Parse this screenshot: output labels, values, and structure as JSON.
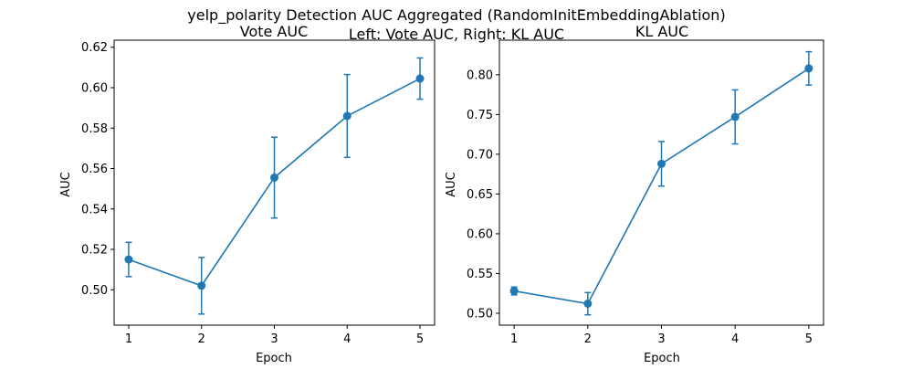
{
  "figure": {
    "suptitle_line1": "yelp_polarity Detection AUC Aggregated (RandomInitEmbeddingAblation)",
    "suptitle_line2": "Left: Vote AUC, Right: KL AUC"
  },
  "colors": {
    "series": "#1f77b4",
    "axes": "#000000",
    "background": "#ffffff"
  },
  "chart_data": [
    {
      "type": "line",
      "title": "Vote AUC",
      "xlabel": "Epoch",
      "ylabel": "AUC",
      "grid": false,
      "x": [
        1,
        2,
        3,
        4,
        5
      ],
      "xticks": [
        "1",
        "2",
        "3",
        "4",
        "5"
      ],
      "xlim": [
        0.8,
        5.2
      ],
      "yticks": [
        "0.50",
        "0.52",
        "0.54",
        "0.56",
        "0.58",
        "0.60",
        "0.62"
      ],
      "ylim": [
        0.4825,
        0.6235
      ],
      "series": [
        {
          "values": [
            0.515,
            0.502,
            0.5555,
            0.586,
            0.6045
          ],
          "error": [
            0.0085,
            0.014,
            0.02,
            0.0205,
            0.0102
          ]
        }
      ]
    },
    {
      "type": "line",
      "title": "KL AUC",
      "xlabel": "Epoch",
      "ylabel": "AUC",
      "grid": false,
      "x": [
        1,
        2,
        3,
        4,
        5
      ],
      "xticks": [
        "1",
        "2",
        "3",
        "4",
        "5"
      ],
      "xlim": [
        0.8,
        5.2
      ],
      "yticks": [
        "0.50",
        "0.55",
        "0.60",
        "0.65",
        "0.70",
        "0.75",
        "0.80"
      ],
      "ylim": [
        0.485,
        0.8435
      ],
      "series": [
        {
          "values": [
            0.528,
            0.512,
            0.688,
            0.747,
            0.808
          ],
          "error": [
            0.005,
            0.014,
            0.028,
            0.034,
            0.021
          ]
        }
      ]
    }
  ]
}
